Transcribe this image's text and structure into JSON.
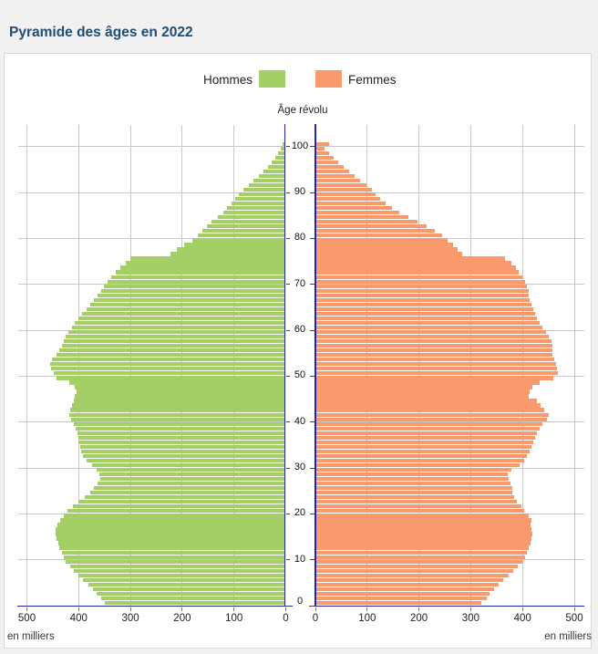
{
  "page": {
    "title": "Pyramide des âges en 2022"
  },
  "legend": {
    "hommes_label": "Hommes",
    "femmes_label": "Femmes"
  },
  "chart_data": {
    "type": "bar",
    "subtype": "population-pyramid",
    "title": "Pyramide des âges en 2022",
    "age_axis_label": "Âge révolu",
    "unit_label_left": "en milliers",
    "unit_label_right": "en milliers",
    "age_min": 0,
    "age_max": 100,
    "age_tick_labels": [
      "0",
      "10",
      "20",
      "30",
      "40",
      "50",
      "60",
      "70",
      "80",
      "90",
      "100"
    ],
    "value_tick_labels_left": [
      "500",
      "400",
      "300",
      "200",
      "100",
      "0"
    ],
    "value_tick_labels_right": [
      "0",
      "100",
      "200",
      "300",
      "400",
      "500"
    ],
    "value_axis_max_per_side": 515,
    "grid": true,
    "legend_position": "top-center",
    "colors": {
      "hommes": "#a4cf66",
      "femmes": "#f99a6d",
      "axis": "#2424a8",
      "grid": "#c9c9c9",
      "tick": "#777777",
      "title": "#1e4d7b"
    },
    "series": [
      {
        "name": "Hommes",
        "side": "left",
        "unit": "milliers",
        "values_by_age": [
          348,
          356,
          364,
          372,
          381,
          391,
          400,
          409,
          416,
          424,
          428,
          432,
          436,
          439,
          442,
          444,
          443,
          440,
          434,
          428,
          420,
          410,
          399,
          387,
          377,
          369,
          362,
          358,
          360,
          365,
          374,
          383,
          390,
          394,
          397,
          399,
          400,
          402,
          405,
          409,
          413,
          417,
          415,
          412,
          409,
          406,
          403,
          407,
          418,
          442,
          448,
          453,
          455,
          450,
          442,
          437,
          432,
          428,
          424,
          419,
          412,
          406,
          399,
          392,
          384,
          376,
          369,
          362,
          356,
          350,
          343,
          336,
          328,
          318,
          308,
          299,
          222,
          209,
          195,
          180,
          169,
          161,
          152,
          142,
          130,
          120,
          112,
          104,
          96,
          89,
          81,
          71,
          61,
          51,
          42,
          34,
          26,
          19,
          14,
          9,
          6
        ]
      },
      {
        "name": "Femmes",
        "side": "right",
        "unit": "milliers",
        "values_by_age": [
          322,
          331,
          338,
          346,
          354,
          364,
          374,
          383,
          392,
          400,
          405,
          409,
          413,
          416,
          419,
          420,
          419,
          417,
          418,
          412,
          404,
          398,
          390,
          385,
          382,
          381,
          378,
          374,
          372,
          380,
          395,
          404,
          409,
          414,
          418,
          421,
          425,
          428,
          434,
          440,
          448,
          452,
          443,
          436,
          428,
          413,
          414,
          420,
          434,
          460,
          469,
          468,
          466,
          462,
          459,
          458,
          458,
          456,
          452,
          446,
          440,
          434,
          429,
          425,
          421,
          418,
          415,
          413,
          412,
          409,
          406,
          400,
          394,
          388,
          379,
          367,
          285,
          276,
          266,
          256,
          246,
          232,
          215,
          198,
          180,
          162,
          148,
          136,
          126,
          117,
          110,
          99,
          88,
          77,
          66,
          56,
          45,
          36,
          27,
          19,
          27
        ]
      }
    ]
  }
}
